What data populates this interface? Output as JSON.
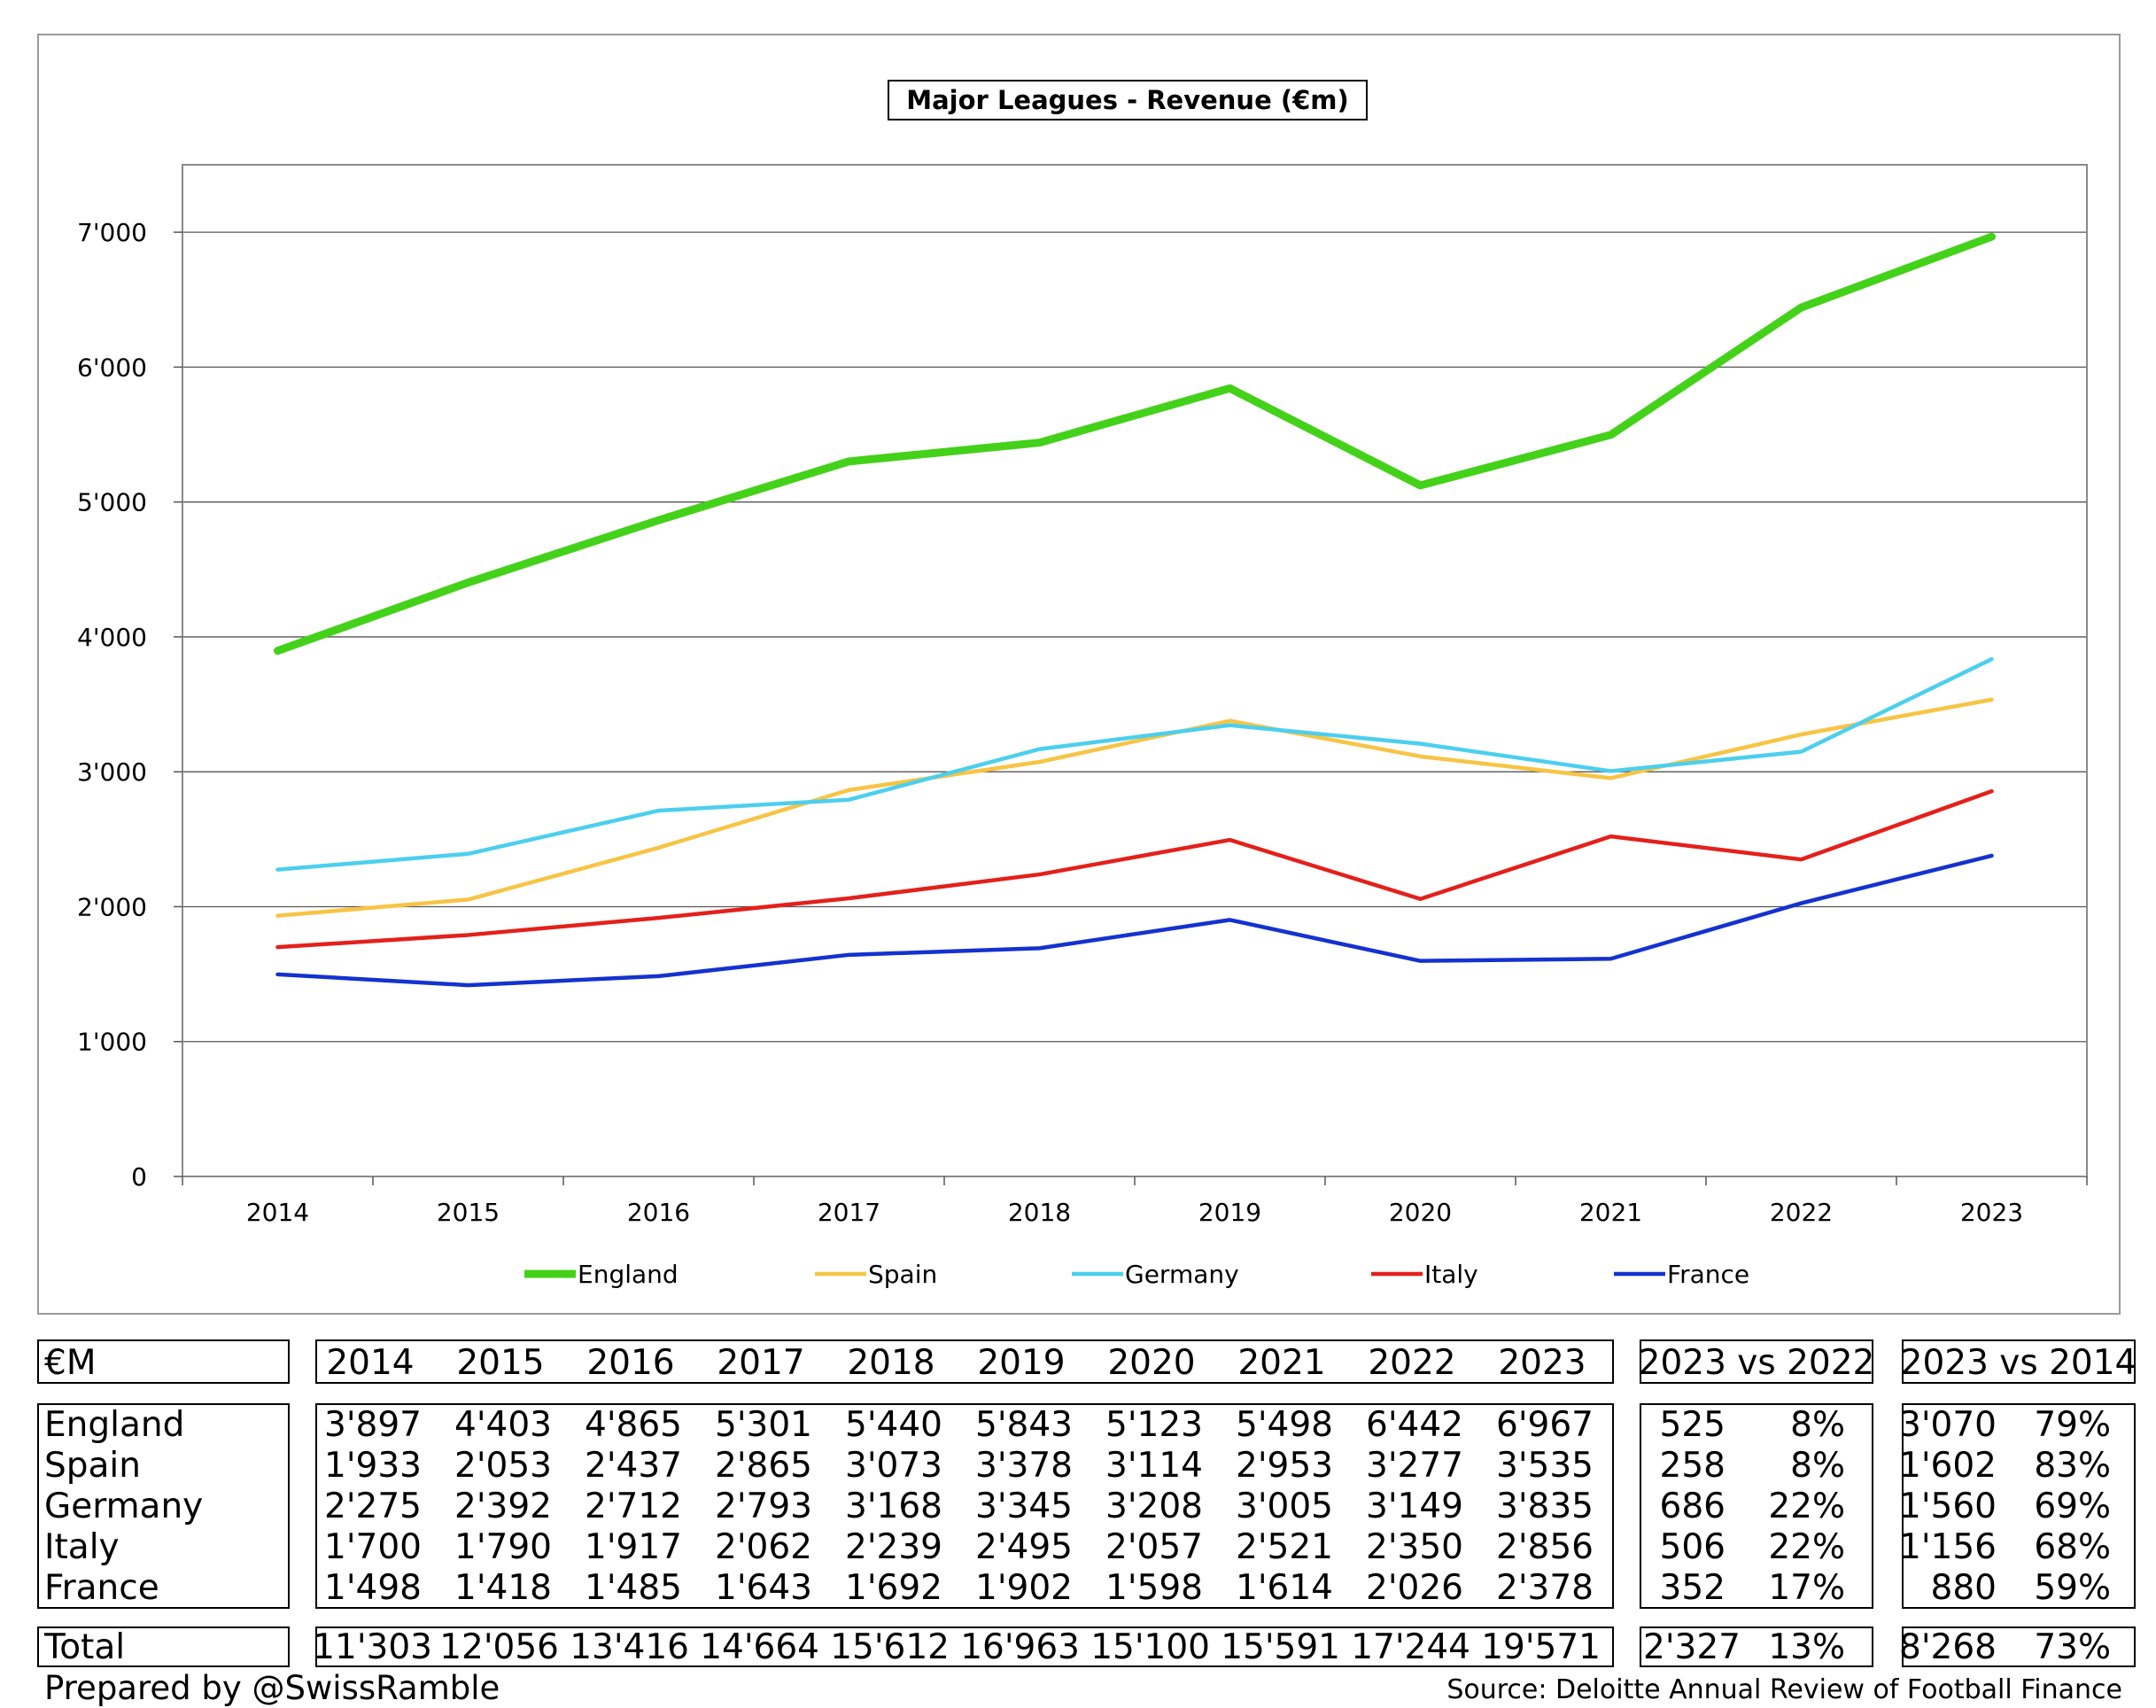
{
  "chart_data": {
    "type": "line",
    "title": "Major Leagues - Revenue (€m)",
    "xlabel": "",
    "ylabel": "",
    "x": [
      "2014",
      "2015",
      "2016",
      "2017",
      "2018",
      "2019",
      "2020",
      "2021",
      "2022",
      "2023"
    ],
    "ylim": [
      0,
      7500
    ],
    "yticks": [
      0,
      1000,
      2000,
      3000,
      4000,
      5000,
      6000,
      7000
    ],
    "ytick_labels": [
      "0",
      "1'000",
      "2'000",
      "3'000",
      "4'000",
      "5'000",
      "6'000",
      "7'000"
    ],
    "grid": true,
    "legend": "bottom",
    "series": [
      {
        "name": "England",
        "color": "#44d11a",
        "values": [
          3897,
          4403,
          4865,
          5301,
          5440,
          5843,
          5123,
          5498,
          6442,
          6967
        ]
      },
      {
        "name": "Spain",
        "color": "#f7c444",
        "values": [
          1933,
          2053,
          2437,
          2865,
          3073,
          3378,
          3114,
          2953,
          3277,
          3535
        ]
      },
      {
        "name": "Germany",
        "color": "#4ccfee",
        "values": [
          2275,
          2392,
          2712,
          2793,
          3168,
          3345,
          3208,
          3005,
          3149,
          3835
        ]
      },
      {
        "name": "Italy",
        "color": "#e4201b",
        "values": [
          1700,
          1790,
          1917,
          2062,
          2239,
          2495,
          2057,
          2521,
          2350,
          2856
        ]
      },
      {
        "name": "France",
        "color": "#1432cf",
        "values": [
          1498,
          1418,
          1485,
          1643,
          1692,
          1902,
          1598,
          1614,
          2026,
          2378
        ]
      }
    ]
  },
  "table": {
    "unit_label": "€M",
    "years": [
      "2014",
      "2015",
      "2016",
      "2017",
      "2018",
      "2019",
      "2020",
      "2021",
      "2022",
      "2023"
    ],
    "cmp1_header": "2023 vs 2022",
    "cmp2_header": "2023 vs 2014",
    "rows": [
      {
        "name": "England",
        "values": [
          "3'897",
          "4'403",
          "4'865",
          "5'301",
          "5'440",
          "5'843",
          "5'123",
          "5'498",
          "6'442",
          "6'967"
        ],
        "d1": "525",
        "p1": "8%",
        "d2": "3'070",
        "p2": "79%"
      },
      {
        "name": "Spain",
        "values": [
          "1'933",
          "2'053",
          "2'437",
          "2'865",
          "3'073",
          "3'378",
          "3'114",
          "2'953",
          "3'277",
          "3'535"
        ],
        "d1": "258",
        "p1": "8%",
        "d2": "1'602",
        "p2": "83%"
      },
      {
        "name": "Germany",
        "values": [
          "2'275",
          "2'392",
          "2'712",
          "2'793",
          "3'168",
          "3'345",
          "3'208",
          "3'005",
          "3'149",
          "3'835"
        ],
        "d1": "686",
        "p1": "22%",
        "d2": "1'560",
        "p2": "69%"
      },
      {
        "name": "Italy",
        "values": [
          "1'700",
          "1'790",
          "1'917",
          "2'062",
          "2'239",
          "2'495",
          "2'057",
          "2'521",
          "2'350",
          "2'856"
        ],
        "d1": "506",
        "p1": "22%",
        "d2": "1'156",
        "p2": "68%"
      },
      {
        "name": "France",
        "values": [
          "1'498",
          "1'418",
          "1'485",
          "1'643",
          "1'692",
          "1'902",
          "1'598",
          "1'614",
          "2'026",
          "2'378"
        ],
        "d1": "352",
        "p1": "17%",
        "d2": "880",
        "p2": "59%"
      }
    ],
    "total": {
      "name": "Total",
      "values": [
        "11'303",
        "12'056",
        "13'416",
        "14'664",
        "15'612",
        "16'963",
        "15'100",
        "15'591",
        "17'244",
        "19'571"
      ],
      "d1": "2'327",
      "p1": "13%",
      "d2": "8'268",
      "p2": "73%"
    }
  },
  "footer": {
    "prepared_by": "Prepared by @SwissRamble",
    "source": "Source: Deloitte Annual Review of Football Finance"
  }
}
